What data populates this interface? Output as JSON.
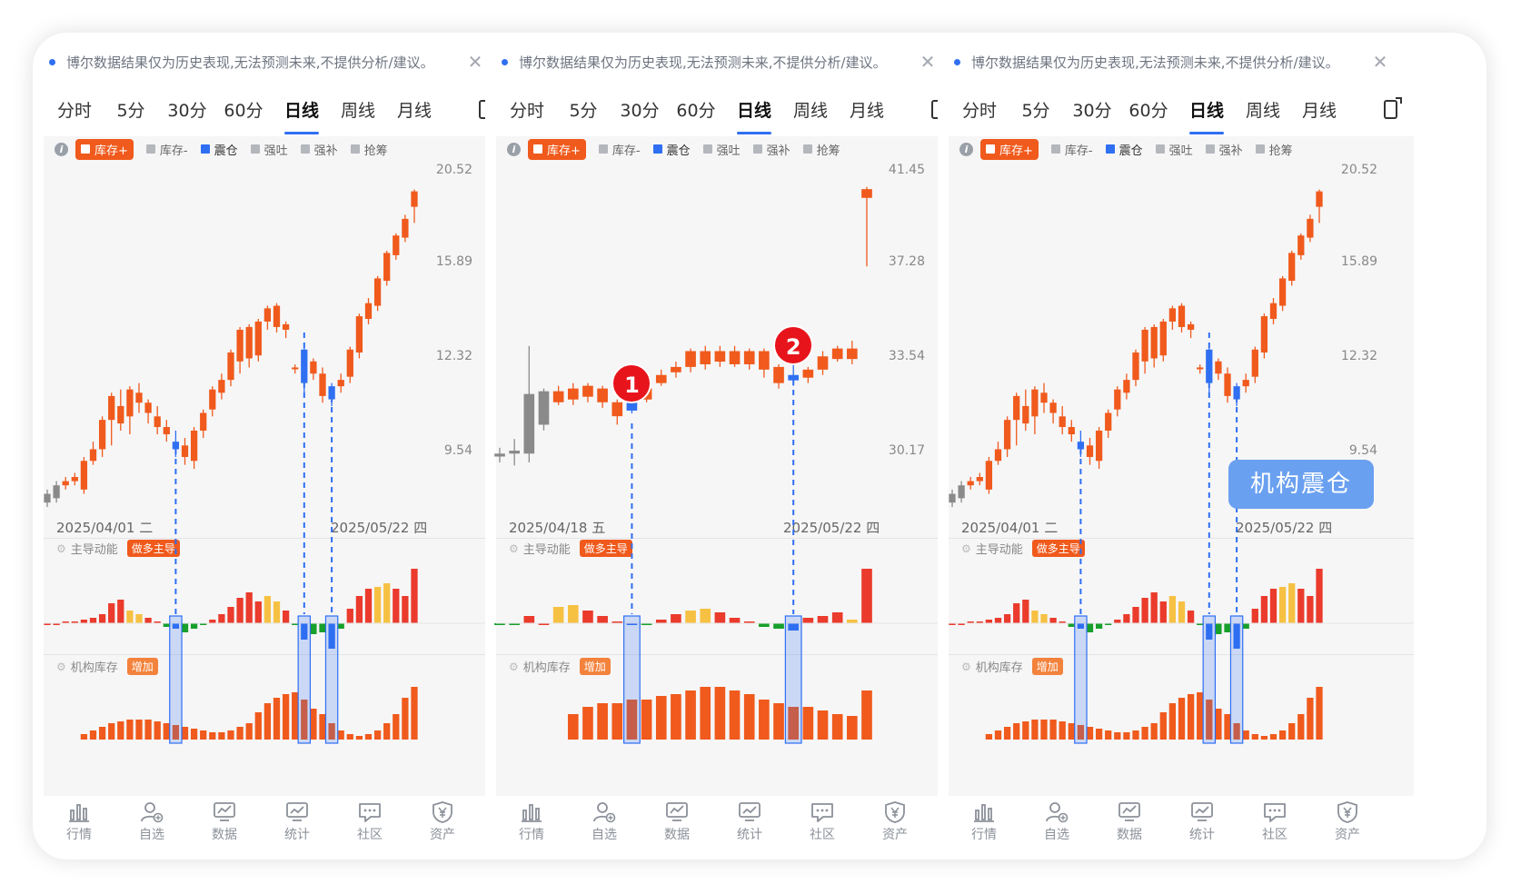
{
  "panels": [
    {
      "notice": "博尔数据结果仅为历史表现,无法预测未来,不提供分析/建议。",
      "tabs": [
        "分时",
        "5分",
        "30分",
        "60分",
        "日线",
        "周线",
        "月线"
      ],
      "active_tab": "日线",
      "legend": [
        {
          "label": "库存+",
          "state": "on"
        },
        {
          "label": "库存-",
          "state": "off"
        },
        {
          "label": "震仓",
          "state": "blue"
        },
        {
          "label": "强吐",
          "state": "off"
        },
        {
          "label": "强补",
          "state": "off"
        },
        {
          "label": "抢筹",
          "state": "off"
        }
      ],
      "y_ticks": [
        "20.52",
        "15.89",
        "12.32",
        "9.54"
      ],
      "date_left": "2025/04/01 二",
      "date_right": "2025/05/22 四",
      "sub1_label": "主导动能",
      "sub1_tag": "做多主导",
      "sub2_label": "机构库存",
      "sub2_tag": "增加",
      "tooltip": ""
    },
    {
      "notice": "博尔数据结果仅为历史表现,无法预测未来,不提供分析/建议。",
      "tabs": [
        "分时",
        "5分",
        "30分",
        "60分",
        "日线",
        "周线",
        "月线"
      ],
      "active_tab": "日线",
      "legend": [
        {
          "label": "库存+",
          "state": "on"
        },
        {
          "label": "库存-",
          "state": "off"
        },
        {
          "label": "震仓",
          "state": "blue"
        },
        {
          "label": "强吐",
          "state": "off"
        },
        {
          "label": "强补",
          "state": "off"
        },
        {
          "label": "抢筹",
          "state": "off"
        }
      ],
      "y_ticks": [
        "41.45",
        "37.28",
        "33.54",
        "30.17"
      ],
      "date_left": "2025/04/18 五",
      "date_right": "2025/05/22 四",
      "sub1_label": "主导动能",
      "sub1_tag": "做多主导",
      "sub2_label": "机构库存",
      "sub2_tag": "增加",
      "markers": [
        "1",
        "2"
      ],
      "tooltip": ""
    },
    {
      "notice": "博尔数据结果仅为历史表现,无法预测未来,不提供分析/建议。",
      "tabs": [
        "分时",
        "5分",
        "30分",
        "60分",
        "日线",
        "周线",
        "月线"
      ],
      "active_tab": "日线",
      "legend": [
        {
          "label": "库存+",
          "state": "on"
        },
        {
          "label": "库存-",
          "state": "off"
        },
        {
          "label": "震仓",
          "state": "blue"
        },
        {
          "label": "强吐",
          "state": "off"
        },
        {
          "label": "强补",
          "state": "off"
        },
        {
          "label": "抢筹",
          "state": "off"
        }
      ],
      "y_ticks": [
        "20.52",
        "15.89",
        "12.32",
        "9.54"
      ],
      "date_left": "2025/04/01 二",
      "date_right": "2025/05/22 四",
      "sub1_label": "主导动能",
      "sub1_tag": "做多主导",
      "sub2_label": "机构库存",
      "sub2_tag": "增加",
      "tooltip": "机构震仓"
    }
  ],
  "nav": [
    {
      "label": "行情",
      "icon": "bar-chart-icon"
    },
    {
      "label": "自选",
      "icon": "user-add-icon"
    },
    {
      "label": "数据",
      "icon": "monitor-chart-icon"
    },
    {
      "label": "统计",
      "icon": "trend-chart-icon"
    },
    {
      "label": "社区",
      "icon": "chat-icon"
    },
    {
      "label": "资产",
      "icon": "yen-shield-icon"
    }
  ],
  "colors": {
    "up": "#f05a1c",
    "blue": "#2f6ff2",
    "green": "#17a02b",
    "yellow": "#f6c143",
    "red": "#ea3b2c",
    "gray": "#999999"
  },
  "chart_data": [
    {
      "type": "candlestick",
      "panel": 1,
      "y_ticks": [
        20.52,
        15.89,
        12.32,
        9.54
      ],
      "candles": [
        [
          8.3,
          8.5,
          8.2,
          8.6,
          "g"
        ],
        [
          8.4,
          8.7,
          8.3,
          8.8,
          "g"
        ],
        [
          8.7,
          8.8,
          8.6,
          8.9,
          "o"
        ],
        [
          8.8,
          8.9,
          8.7,
          9.0,
          "o"
        ],
        [
          8.6,
          9.3,
          8.5,
          9.4,
          "o"
        ],
        [
          9.3,
          9.6,
          9.2,
          9.8,
          "o"
        ],
        [
          9.6,
          10.4,
          9.4,
          10.5,
          "o"
        ],
        [
          10.4,
          11.1,
          9.7,
          11.2,
          "o"
        ],
        [
          10.3,
          10.8,
          10.1,
          11.3,
          "o"
        ],
        [
          10.5,
          11.3,
          10.0,
          11.4,
          "o"
        ],
        [
          11.2,
          10.9,
          10.6,
          11.5,
          "o"
        ],
        [
          10.9,
          10.6,
          10.3,
          11.0,
          "o"
        ],
        [
          10.5,
          10.2,
          10.0,
          10.8,
          "o"
        ],
        [
          10.2,
          10.0,
          9.8,
          10.4,
          "o"
        ],
        [
          9.8,
          9.6,
          9.4,
          10.1,
          "b"
        ],
        [
          9.7,
          9.4,
          9.2,
          9.9,
          "o"
        ],
        [
          9.3,
          10.1,
          9.1,
          10.2,
          "o"
        ],
        [
          10.1,
          10.6,
          9.9,
          10.7,
          "o"
        ],
        [
          10.7,
          11.3,
          10.5,
          11.4,
          "o"
        ],
        [
          11.2,
          11.6,
          11.0,
          11.8,
          "o"
        ],
        [
          11.6,
          12.5,
          11.4,
          12.6,
          "o"
        ],
        [
          12.2,
          13.3,
          11.8,
          13.4,
          "o"
        ],
        [
          13.4,
          12.3,
          12.0,
          13.5,
          "o"
        ],
        [
          12.4,
          13.6,
          12.2,
          13.7,
          "o"
        ],
        [
          13.6,
          14.1,
          13.3,
          14.2,
          "o"
        ],
        [
          14.2,
          13.4,
          13.2,
          14.3,
          "o"
        ],
        [
          13.5,
          13.3,
          13.0,
          13.6,
          "o"
        ],
        [
          12.0,
          12.0,
          11.8,
          12.1,
          "o"
        ],
        [
          12.6,
          11.5,
          11.1,
          12.8,
          "b"
        ],
        [
          12.2,
          11.8,
          11.6,
          12.3,
          "o"
        ],
        [
          11.8,
          11.1,
          10.9,
          12.0,
          "o"
        ],
        [
          11.0,
          11.4,
          10.8,
          11.5,
          "b"
        ],
        [
          11.4,
          11.6,
          11.2,
          11.8,
          "o"
        ],
        [
          11.7,
          12.6,
          11.5,
          12.7,
          "o"
        ],
        [
          12.5,
          13.8,
          12.3,
          13.9,
          "o"
        ],
        [
          13.7,
          14.3,
          13.5,
          14.5,
          "o"
        ],
        [
          14.2,
          15.3,
          14.0,
          15.4,
          "o"
        ],
        [
          15.2,
          16.4,
          15.0,
          16.5,
          "o"
        ],
        [
          16.3,
          17.2,
          16.1,
          17.3,
          "o"
        ],
        [
          17.1,
          18.0,
          16.9,
          18.2,
          "o"
        ],
        [
          18.6,
          19.4,
          17.8,
          19.5,
          "o"
        ]
      ]
    },
    {
      "type": "candlestick",
      "panel": 2,
      "y_ticks": [
        41.45,
        37.28,
        33.54,
        30.17
      ],
      "candles": [
        [
          30.0,
          30.1,
          29.8,
          30.3,
          "g"
        ],
        [
          30.1,
          30.2,
          29.7,
          30.6,
          "g"
        ],
        [
          30.1,
          32.2,
          29.8,
          34.0,
          "g"
        ],
        [
          31.1,
          32.3,
          30.9,
          32.4,
          "g"
        ],
        [
          32.3,
          31.9,
          31.8,
          32.5,
          "o"
        ],
        [
          32.0,
          32.4,
          31.8,
          32.6,
          "o"
        ],
        [
          32.1,
          32.5,
          31.9,
          32.6,
          "o"
        ],
        [
          32.4,
          31.9,
          31.7,
          32.5,
          "o"
        ],
        [
          31.9,
          31.4,
          31.1,
          32.0,
          "o"
        ],
        [
          31.6,
          32.2,
          31.5,
          32.3,
          "b"
        ],
        [
          32.0,
          32.4,
          31.9,
          32.6,
          "o"
        ],
        [
          32.6,
          32.9,
          32.5,
          33.1,
          "o"
        ],
        [
          33.0,
          33.2,
          32.8,
          33.4,
          "o"
        ],
        [
          33.2,
          33.8,
          33.0,
          33.9,
          "o"
        ],
        [
          33.8,
          33.3,
          33.1,
          34.0,
          "o"
        ],
        [
          33.8,
          33.4,
          33.2,
          34.0,
          "o"
        ],
        [
          33.8,
          33.3,
          33.2,
          34.0,
          "o"
        ],
        [
          33.8,
          33.3,
          33.1,
          33.9,
          "o"
        ],
        [
          33.8,
          33.1,
          32.8,
          33.9,
          "o"
        ],
        [
          33.2,
          32.6,
          32.4,
          33.3,
          "o"
        ],
        [
          32.9,
          32.7,
          32.5,
          33.3,
          "b"
        ],
        [
          32.8,
          33.1,
          32.6,
          33.2,
          "o"
        ],
        [
          33.1,
          33.6,
          32.9,
          33.8,
          "o"
        ],
        [
          33.5,
          33.9,
          33.4,
          34.0,
          "o"
        ],
        [
          33.9,
          33.5,
          33.3,
          34.2,
          "o"
        ],
        [
          40.6,
          40.2,
          37.2,
          40.7,
          "o"
        ]
      ]
    },
    {
      "type": "candlestick",
      "panel": 3,
      "y_ticks": [
        20.52,
        15.89,
        12.32,
        9.54
      ],
      "candles": "same as panel 1"
    }
  ]
}
